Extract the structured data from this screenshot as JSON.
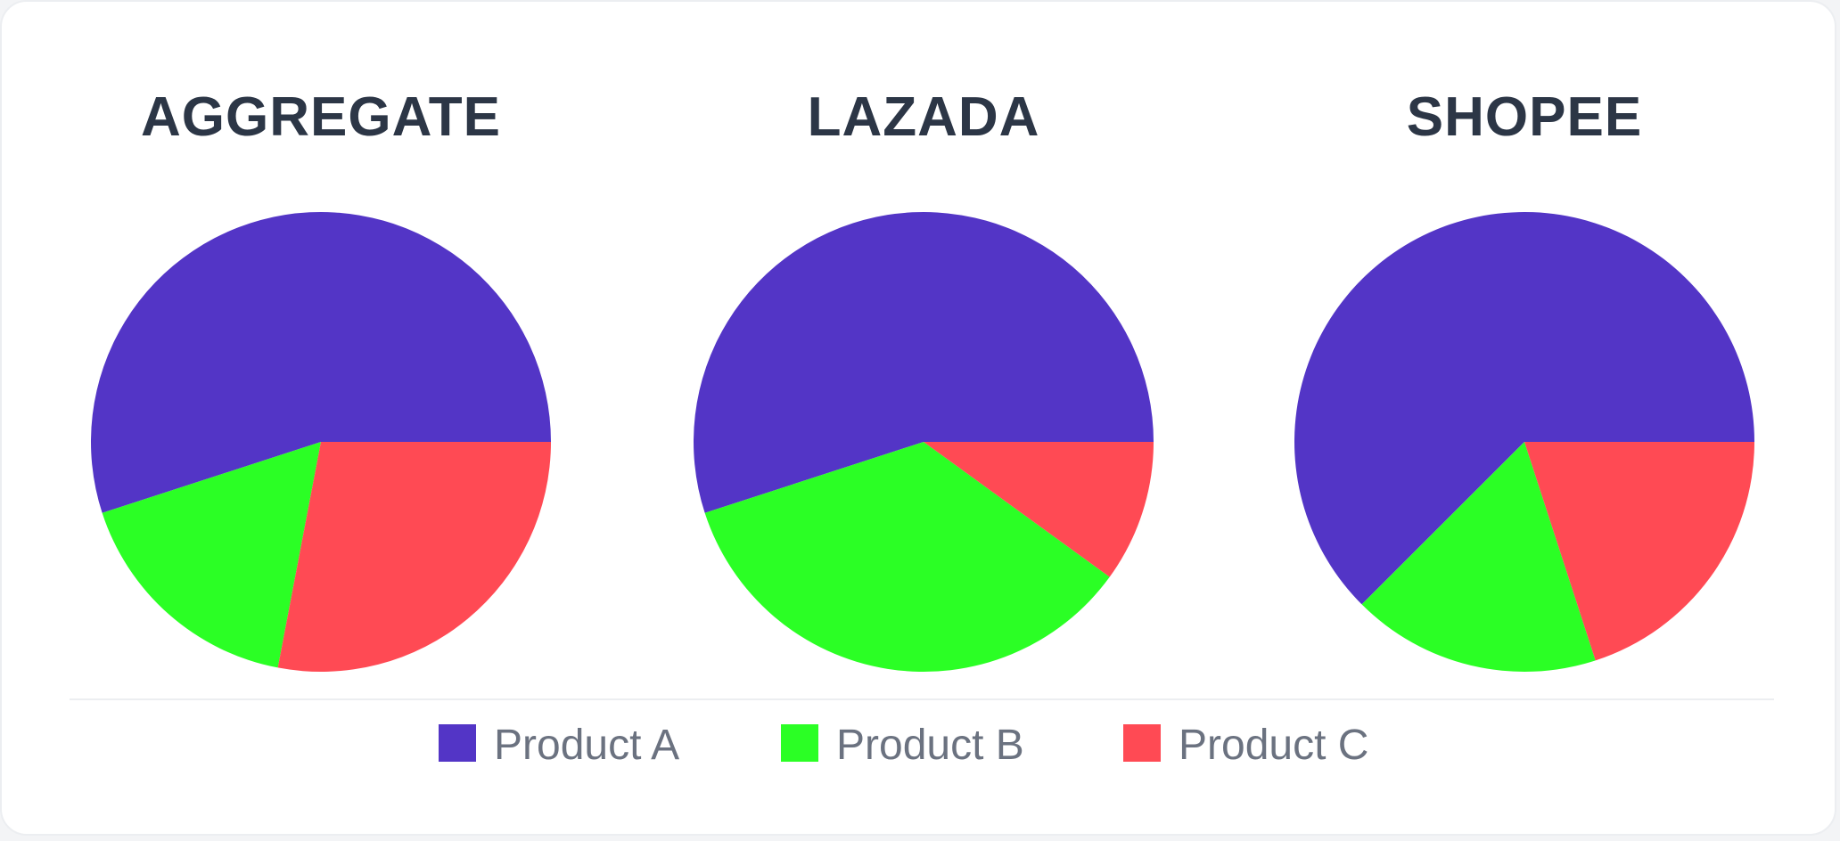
{
  "chart_data": [
    {
      "type": "pie",
      "title": "AGGREGATE",
      "categories": [
        "Product A",
        "Product B",
        "Product C"
      ],
      "values": [
        55,
        17,
        28
      ]
    },
    {
      "type": "pie",
      "title": "LAZADA",
      "categories": [
        "Product A",
        "Product B",
        "Product C"
      ],
      "values": [
        55,
        35,
        10
      ]
    },
    {
      "type": "pie",
      "title": "SHOPEE",
      "categories": [
        "Product A",
        "Product B",
        "Product C"
      ],
      "values": [
        62.5,
        17.5,
        20
      ]
    }
  ],
  "legend": {
    "position": "bottom",
    "items": [
      {
        "label": "Product A",
        "color": "#5335c6"
      },
      {
        "label": "Product B",
        "color": "#2bff25"
      },
      {
        "label": "Product C",
        "color": "#ff4a54"
      }
    ]
  }
}
